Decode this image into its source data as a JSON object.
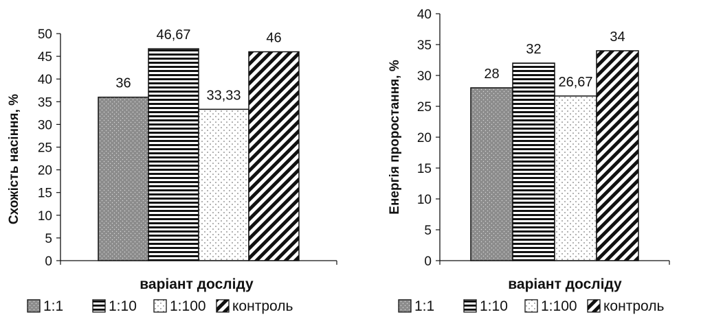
{
  "chart_data": [
    {
      "type": "bar",
      "categories": [
        "1:1",
        "1:10",
        "1:100",
        "контроль"
      ],
      "values": [
        36,
        46.67,
        33.33,
        46
      ],
      "value_labels": [
        "36",
        "46,67",
        "33,33",
        "46"
      ],
      "ylim": [
        0,
        50
      ],
      "ytick_step": 5,
      "ylabel": "Схожість насіння, %",
      "xlabel": "варіант досліду",
      "legend": {
        "placement": "bottom",
        "entries": [
          "1:1",
          "1:10",
          "1:100",
          "контроль"
        ]
      },
      "grid": false
    },
    {
      "type": "bar",
      "categories": [
        "1:1",
        "1:10",
        "1:100",
        "контроль"
      ],
      "values": [
        28,
        32,
        26.67,
        34
      ],
      "value_labels": [
        "28",
        "32",
        "26,67",
        "34"
      ],
      "ylim": [
        0,
        40
      ],
      "ytick_step": 5,
      "ylabel": "Енергія  проростання, %",
      "xlabel": "варіант досліду",
      "legend": {
        "placement": "bottom",
        "entries": [
          "1:1",
          "1:10",
          "1:100",
          "контроль"
        ]
      },
      "grid": false
    }
  ],
  "patterns": [
    "dots-dark",
    "horizontal-lines",
    "dots-light",
    "diagonal-lines"
  ],
  "colors": {
    "bar_dark_fill": "#8c8c8c",
    "ink": "#111111",
    "background": "#ffffff"
  }
}
